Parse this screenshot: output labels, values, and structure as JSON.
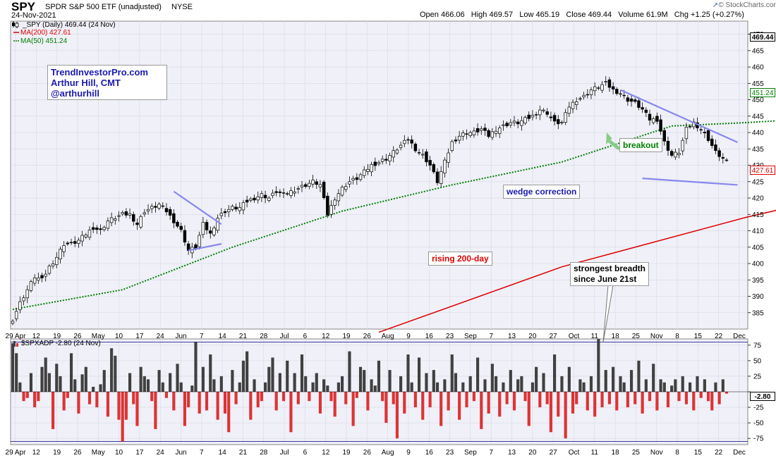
{
  "header": {
    "symbol": "SPY",
    "description": "SPDR S&P 500 ETF (unadjusted)",
    "exchange": "NYSE",
    "date": "24-Nov-2021",
    "ohlc_line": "Open 466.06   High 469.57   Low 465.19   Close 469.44   Volume 61.9M   Chg +1.25 (+0.27%)",
    "brand": "© StockCharts.com",
    "brand_icon": "up-arrow-icon"
  },
  "legend": {
    "price": "_SPY (Daily) 469.44 (24 Nov)",
    "ma200": "MA(200) 427.61",
    "ma50": "MA(50) 451.24"
  },
  "watermark": {
    "line1": "TrendInvestorPro.com",
    "line2": "Arthur Hill, CMT",
    "line3": "@arthurhill"
  },
  "annotations": {
    "wedge": "wedge correction",
    "breakout": "breakout",
    "rising": "rising 200-day",
    "breadth1": "strongest breadth",
    "breadth2": "since June 21st"
  },
  "lower": {
    "label": "$SPXADP -2.80 (24 Nov)",
    "last": "-2.80"
  },
  "price_tags": {
    "close": "469.44",
    "ma50": "451.24",
    "ma200": "427.61"
  },
  "colors": {
    "background": "#ffffff",
    "plot_bg": "#f0f0f8",
    "up": "#000000",
    "down": "#000000",
    "ma50": "#008000",
    "ma200": "#dd0000",
    "positive_bar": "#404040",
    "negative_bar": "#dd3333",
    "wedge_lines": "#8888ee",
    "brand_text": "#1a1ab0",
    "brand_border": "#777777"
  },
  "chart_data": [
    {
      "type": "candlestick",
      "title": "SPY SPDR S&P 500 ETF (unadjusted) NYSE",
      "ylim": [
        380,
        474
      ],
      "y_ticks": [
        385,
        390,
        395,
        400,
        405,
        410,
        415,
        420,
        425,
        430,
        435,
        440,
        445,
        450,
        455,
        460,
        465,
        470
      ],
      "x_ticks": [
        "29 Apr",
        "12",
        "19",
        "26",
        "May",
        "10",
        "17",
        "24",
        "Jun",
        "7",
        "14",
        "21",
        "28",
        "Jul",
        "6",
        "12",
        "19",
        "26",
        "Aug",
        "9",
        "16",
        "23",
        "Sep",
        "7",
        "13",
        "20",
        "27",
        "Oct",
        "11",
        "18",
        "25",
        "Nov",
        "8",
        "15",
        "22",
        "Dec"
      ],
      "close_path": [
        [
          0,
          383
        ],
        [
          2,
          388
        ],
        [
          4,
          392
        ],
        [
          6,
          396
        ],
        [
          8,
          395
        ],
        [
          10,
          399
        ],
        [
          12,
          402
        ],
        [
          14,
          406
        ],
        [
          16,
          406
        ],
        [
          18,
          407
        ],
        [
          20,
          409
        ],
        [
          22,
          411
        ],
        [
          24,
          410
        ],
        [
          26,
          413
        ],
        [
          28,
          414
        ],
        [
          30,
          415
        ],
        [
          32,
          415
        ],
        [
          34,
          412
        ],
        [
          36,
          416
        ],
        [
          38,
          417
        ],
        [
          40,
          418
        ],
        [
          42,
          416
        ],
        [
          44,
          413
        ],
        [
          46,
          410
        ],
        [
          48,
          404
        ],
        [
          50,
          405
        ],
        [
          52,
          412
        ],
        [
          54,
          409
        ],
        [
          56,
          414
        ],
        [
          58,
          416
        ],
        [
          60,
          417
        ],
        [
          62,
          417
        ],
        [
          64,
          419
        ],
        [
          66,
          420
        ],
        [
          68,
          421
        ],
        [
          70,
          420
        ],
        [
          72,
          422
        ],
        [
          74,
          421
        ],
        [
          76,
          422
        ],
        [
          78,
          423
        ],
        [
          80,
          424
        ],
        [
          82,
          425
        ],
        [
          84,
          424
        ],
        [
          86,
          415
        ],
        [
          88,
          420
        ],
        [
          90,
          423
        ],
        [
          92,
          425
        ],
        [
          94,
          426
        ],
        [
          96,
          428
        ],
        [
          98,
          430
        ],
        [
          100,
          431
        ],
        [
          102,
          432
        ],
        [
          104,
          434
        ],
        [
          106,
          436
        ],
        [
          108,
          438
        ],
        [
          110,
          435
        ],
        [
          112,
          433
        ],
        [
          114,
          430
        ],
        [
          116,
          425
        ],
        [
          118,
          431
        ],
        [
          120,
          437
        ],
        [
          122,
          439
        ],
        [
          124,
          440
        ],
        [
          126,
          440
        ],
        [
          128,
          441
        ],
        [
          130,
          439
        ],
        [
          132,
          441
        ],
        [
          134,
          442
        ],
        [
          136,
          443
        ],
        [
          138,
          443
        ],
        [
          140,
          444
        ],
        [
          142,
          445
        ],
        [
          144,
          447
        ],
        [
          146,
          446
        ],
        [
          148,
          443
        ],
        [
          150,
          443
        ],
        [
          152,
          448
        ],
        [
          154,
          450
        ],
        [
          156,
          451
        ],
        [
          158,
          453
        ],
        [
          160,
          454
        ],
        [
          162,
          455
        ],
        [
          164,
          453
        ],
        [
          166,
          452
        ],
        [
          168,
          450
        ],
        [
          170,
          449
        ],
        [
          172,
          447
        ],
        [
          174,
          444
        ],
        [
          176,
          444
        ],
        [
          178,
          437
        ],
        [
          180,
          433
        ],
        [
          182,
          434
        ],
        [
          184,
          441
        ],
        [
          186,
          443
        ],
        [
          188,
          441
        ],
        [
          190,
          438
        ],
        [
          192,
          434
        ],
        [
          194,
          432
        ],
        [
          196,
          430
        ],
        [
          198,
          432
        ],
        [
          200,
          430
        ],
        [
          202,
          434
        ],
        [
          204,
          436
        ],
        [
          206,
          437
        ],
        [
          208,
          435
        ],
        [
          210,
          440
        ],
        [
          212,
          449
        ],
        [
          214,
          452
        ],
        [
          216,
          453
        ],
        [
          218,
          456
        ],
        [
          220,
          458
        ],
        [
          222,
          459
        ],
        [
          224,
          461
        ],
        [
          226,
          461
        ],
        [
          228,
          463
        ],
        [
          230,
          466
        ],
        [
          232,
          468
        ],
        [
          234,
          467
        ],
        [
          236,
          466
        ],
        [
          238,
          466
        ],
        [
          240,
          467
        ],
        [
          242,
          468
        ],
        [
          244,
          467
        ],
        [
          246,
          469
        ],
        [
          248,
          468
        ],
        [
          250,
          465
        ],
        [
          252,
          469
        ]
      ],
      "series": [
        {
          "name": "MA(200) 427.61",
          "last": 427.61,
          "path": [
            [
              100,
              379
            ],
            [
              150,
              399
            ],
            [
              200,
              414
            ],
            [
              252,
              427.61
            ]
          ]
        },
        {
          "name": "MA(50) 451.24",
          "last": 451.24,
          "path": [
            [
              0,
              386
            ],
            [
              30,
              392
            ],
            [
              60,
              405
            ],
            [
              90,
              416
            ],
            [
              120,
              424
            ],
            [
              150,
              431
            ],
            [
              180,
              442
            ],
            [
              200,
              443
            ],
            [
              215,
              444
            ],
            [
              230,
              447
            ],
            [
              252,
              451.24
            ]
          ]
        }
      ],
      "trend_lines": [
        [
          [
            44,
            422
          ],
          [
            57,
            412
          ]
        ],
        [
          [
            48,
            404
          ],
          [
            57,
            406
          ]
        ],
        [
          [
            166,
            453
          ],
          [
            198,
            437
          ]
        ],
        [
          [
            172,
            426
          ],
          [
            198,
            424
          ]
        ]
      ]
    },
    {
      "type": "bar",
      "title": "$SPXADP -2.80 (24 Nov)",
      "ylim": [
        -85,
        85
      ],
      "y_ticks": [
        -75,
        -50,
        -25,
        0,
        25,
        50,
        75
      ],
      "reference_lines": [
        80,
        -80
      ],
      "x_ticks": [
        "29 Apr",
        "12",
        "19",
        "26",
        "May",
        "10",
        "17",
        "24",
        "Jun",
        "7",
        "14",
        "21",
        "28",
        "Jul",
        "6",
        "12",
        "19",
        "26",
        "Aug",
        "9",
        "16",
        "23",
        "Sep",
        "7",
        "13",
        "20",
        "27",
        "Oct",
        "11",
        "18",
        "25",
        "Nov",
        "8",
        "15",
        "22",
        "Dec"
      ],
      "values": [
        78,
        62,
        15,
        -15,
        -10,
        30,
        -25,
        -15,
        40,
        55,
        30,
        -60,
        45,
        25,
        -30,
        -10,
        62,
        20,
        -35,
        28,
        40,
        -20,
        8,
        -25,
        12,
        35,
        -40,
        70,
        58,
        -45,
        -80,
        -45,
        30,
        -20,
        -55,
        40,
        25,
        20,
        -15,
        -60,
        35,
        15,
        -10,
        30,
        -30,
        45,
        15,
        -55,
        -25,
        10,
        80,
        -35,
        40,
        -30,
        60,
        20,
        -45,
        25,
        -35,
        -65,
        35,
        -20,
        15,
        50,
        65,
        -45,
        20,
        -25,
        -15,
        15,
        40,
        55,
        -30,
        30,
        -15,
        50,
        -65,
        30,
        -20,
        60,
        25,
        -15,
        15,
        30,
        -35,
        20,
        10,
        -15,
        -40,
        15,
        25,
        -20,
        65,
        -55,
        -10,
        40,
        35,
        -30,
        20,
        10,
        50,
        -15,
        -50,
        35,
        -20,
        -75,
        25,
        -35,
        60,
        15,
        -25,
        55,
        -45,
        30,
        -25,
        35,
        15,
        -55,
        20,
        -30,
        60,
        30,
        -45,
        15,
        -25,
        25,
        -15,
        55,
        -60,
        20,
        -35,
        45,
        25,
        -40,
        15,
        -20,
        35,
        -30,
        20,
        25,
        -15,
        -55,
        15,
        40,
        -25,
        30,
        -20,
        -65,
        60,
        -40,
        25,
        -75,
        40,
        -35,
        -20,
        20,
        15,
        -30,
        25,
        -40,
        85,
        -25,
        35,
        -20,
        40,
        -30,
        25,
        15,
        -25,
        35,
        -20,
        50,
        -35,
        20,
        -15,
        45,
        -30,
        20,
        15,
        -25,
        10,
        20,
        -15,
        25,
        -20,
        15,
        -30,
        25,
        -10,
        20,
        -15,
        -30,
        15,
        -20,
        20,
        -3
      ]
    }
  ]
}
